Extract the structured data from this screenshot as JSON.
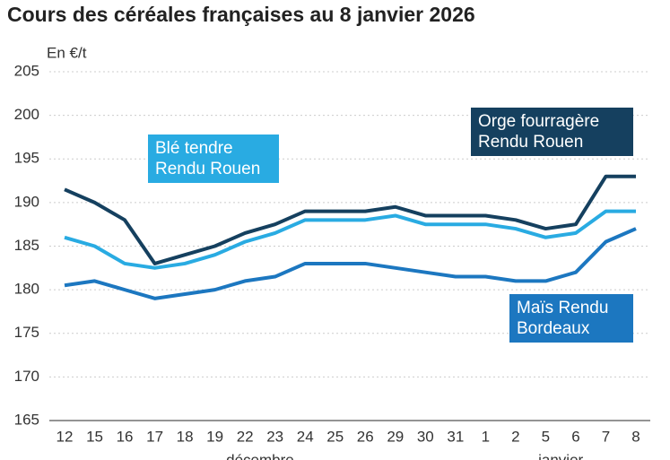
{
  "chart_data": {
    "type": "line",
    "title": "Cours des céréales françaises au 8 janvier 2026",
    "y_label": "En €/t",
    "categories": [
      "12",
      "15",
      "16",
      "17",
      "18",
      "19",
      "22",
      "23",
      "24",
      "25",
      "26",
      "29",
      "30",
      "31",
      "1",
      "2",
      "5",
      "6",
      "7",
      "8"
    ],
    "month_labels": [
      "décembre",
      "janvier"
    ],
    "series": [
      {
        "name": "Orge fourragère Rendu Rouen",
        "color": "#15405f",
        "values": [
          191.5,
          190,
          188,
          183,
          184,
          185,
          186.5,
          187.5,
          189,
          189,
          189,
          189.5,
          188.5,
          188.5,
          188.5,
          188,
          187,
          187.5,
          193,
          193
        ]
      },
      {
        "name": "Blé tendre Rendu Rouen",
        "color": "#29abe2",
        "values": [
          186,
          185,
          183,
          182.5,
          183,
          184,
          185.5,
          186.5,
          188,
          188,
          188,
          188.5,
          187.5,
          187.5,
          187.5,
          187,
          186,
          186.5,
          189,
          189
        ]
      },
      {
        "name": "Maïs Rendu Bordeaux",
        "color": "#1c77c0",
        "values": [
          180.5,
          181,
          180,
          179,
          179.5,
          180,
          181,
          181.5,
          183,
          183,
          183,
          182.5,
          182,
          181.5,
          181.5,
          181,
          181,
          182,
          185.5,
          187
        ]
      }
    ],
    "ylim": [
      165,
      205
    ],
    "yticks": [
      165,
      170,
      175,
      180,
      185,
      190,
      195,
      200,
      205
    ],
    "grid": true
  }
}
